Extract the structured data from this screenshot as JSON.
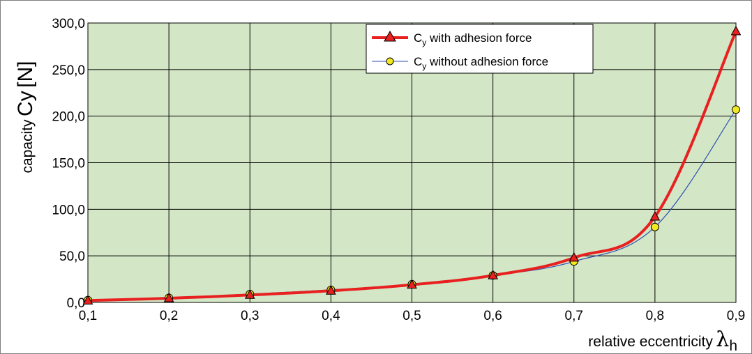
{
  "chart_data": {
    "type": "line",
    "xlabel_prefix": "relative eccentricity",
    "xlabel_symbol": "λ",
    "xlabel_sub": "h",
    "ylabel_prefix": "capacity",
    "ylabel_symbol": "Cy",
    "ylabel_unit": "[N]",
    "xlim": [
      0.1,
      0.9
    ],
    "ylim": [
      0,
      300
    ],
    "x_ticks": [
      0.1,
      0.2,
      0.3,
      0.4,
      0.5,
      0.6,
      0.7,
      0.8,
      0.9
    ],
    "x_tick_labels": [
      "0,1",
      "0,2",
      "0,3",
      "0,4",
      "0,5",
      "0,6",
      "0,7",
      "0,8",
      "0,9"
    ],
    "y_ticks": [
      0,
      50,
      100,
      150,
      200,
      250,
      300
    ],
    "y_tick_labels": [
      "0,0",
      "50,0",
      "100,0",
      "150,0",
      "200,0",
      "250,0",
      "300,0"
    ],
    "grid": true,
    "legend_position": "top-right",
    "series": [
      {
        "label_main": "C",
        "label_sub": "y",
        "label_rest": " with adhesion force",
        "color": "#e82020",
        "marker": "triangle",
        "x": [
          0.1,
          0.2,
          0.3,
          0.4,
          0.5,
          0.6,
          0.7,
          0.8,
          0.9
        ],
        "y": [
          2,
          4.5,
          8,
          12.5,
          19,
          29,
          48,
          92,
          291
        ]
      },
      {
        "label_main": "C",
        "label_sub": "y",
        "label_rest": " without adhesion force",
        "color": "#3050b0",
        "marker": "circle",
        "x": [
          0.1,
          0.2,
          0.3,
          0.4,
          0.5,
          0.6,
          0.7,
          0.8,
          0.9
        ],
        "y": [
          2.5,
          5,
          9,
          13.5,
          19.5,
          29,
          44,
          81,
          207
        ]
      }
    ]
  },
  "colors": {
    "plot_background": "#d3e6c6",
    "grid": "#000000",
    "marker_triangle_fill": "#e82020",
    "marker_circle_fill": "#f2ea20"
  }
}
